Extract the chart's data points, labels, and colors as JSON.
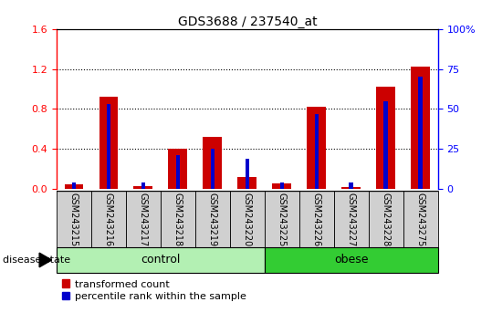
{
  "title": "GDS3688 / 237540_at",
  "samples": [
    "GSM243215",
    "GSM243216",
    "GSM243217",
    "GSM243218",
    "GSM243219",
    "GSM243220",
    "GSM243225",
    "GSM243226",
    "GSM243227",
    "GSM243228",
    "GSM243275"
  ],
  "transformed_count": [
    0.05,
    0.92,
    0.03,
    0.4,
    0.52,
    0.12,
    0.06,
    0.82,
    0.02,
    1.02,
    1.22
  ],
  "percentile_rank_pct": [
    4.0,
    53.0,
    4.0,
    21.0,
    25.0,
    19.0,
    4.0,
    47.0,
    4.0,
    55.0,
    70.0
  ],
  "groups": [
    {
      "label": "control",
      "start": 0,
      "end": 6,
      "color": "#b3f0b3"
    },
    {
      "label": "obese",
      "start": 6,
      "end": 11,
      "color": "#33cc33"
    }
  ],
  "ylim_left": [
    0,
    1.6
  ],
  "ylim_right": [
    0,
    100
  ],
  "yticks_left": [
    0,
    0.4,
    0.8,
    1.2,
    1.6
  ],
  "yticks_right": [
    0,
    25,
    50,
    75,
    100
  ],
  "bar_color_red": "#cc0000",
  "bar_color_blue": "#0000cc",
  "red_bar_width": 0.55,
  "blue_bar_width": 0.12,
  "tick_label_area_color": "#d0d0d0",
  "legend_red_label": "transformed count",
  "legend_blue_label": "percentile rank within the sample",
  "disease_state_label": "disease state",
  "title_fontsize": 10,
  "tick_fontsize": 8,
  "label_fontsize": 7
}
